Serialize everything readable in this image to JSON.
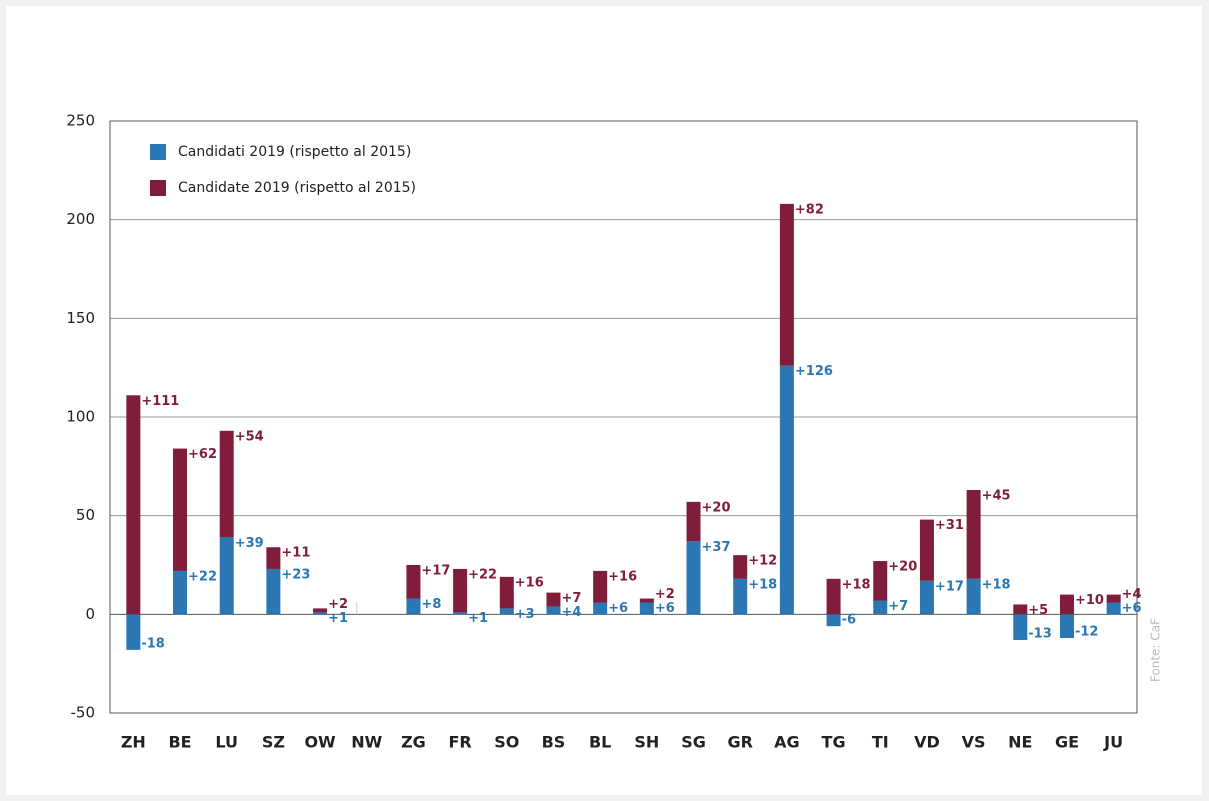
{
  "chart_data": {
    "type": "stacked_bar",
    "categories": [
      "ZH",
      "BE",
      "LU",
      "SZ",
      "OW",
      "NW",
      "ZG",
      "FR",
      "SO",
      "BS",
      "BL",
      "SH",
      "SG",
      "GR",
      "AG",
      "TG",
      "TI",
      "VD",
      "VS",
      "NE",
      "GE",
      "JU"
    ],
    "series": [
      {
        "name": "Candidati 2019 (rispetto al 2015)",
        "color": "#2a77b4",
        "values": [
          -18,
          22,
          39,
          23,
          1,
          null,
          8,
          1,
          3,
          4,
          6,
          6,
          37,
          18,
          126,
          -6,
          7,
          17,
          18,
          -13,
          -12,
          6
        ],
        "value_labels": [
          "-18",
          "+22",
          "+39",
          "+23",
          "+1",
          null,
          "+8",
          "+1",
          "+3",
          "+4",
          "+6",
          "+6",
          "+37",
          "+18",
          "+126",
          "-6",
          "+7",
          "+17",
          "+18",
          "-13",
          "-12",
          "+6"
        ]
      },
      {
        "name": "Candidate 2019 (rispetto al 2015)",
        "color": "#7f1d3b",
        "values": [
          111,
          62,
          54,
          11,
          2,
          null,
          17,
          22,
          16,
          7,
          16,
          2,
          20,
          12,
          82,
          18,
          20,
          31,
          45,
          5,
          10,
          4
        ],
        "value_labels": [
          "+111",
          "+62",
          "+54",
          "+11",
          "+2",
          null,
          "+17",
          "+22",
          "+16",
          "+7",
          "+16",
          "+2",
          "+20",
          "+12",
          "+82",
          "+18",
          "+20",
          "+31",
          "+45",
          "+5",
          "+10",
          "+4"
        ]
      }
    ],
    "ylim": [
      -50,
      250
    ],
    "yticks": [
      -50,
      0,
      50,
      100,
      150,
      200,
      250
    ],
    "grid": true,
    "legend": "top-left",
    "source": "Fonte: CaF"
  }
}
